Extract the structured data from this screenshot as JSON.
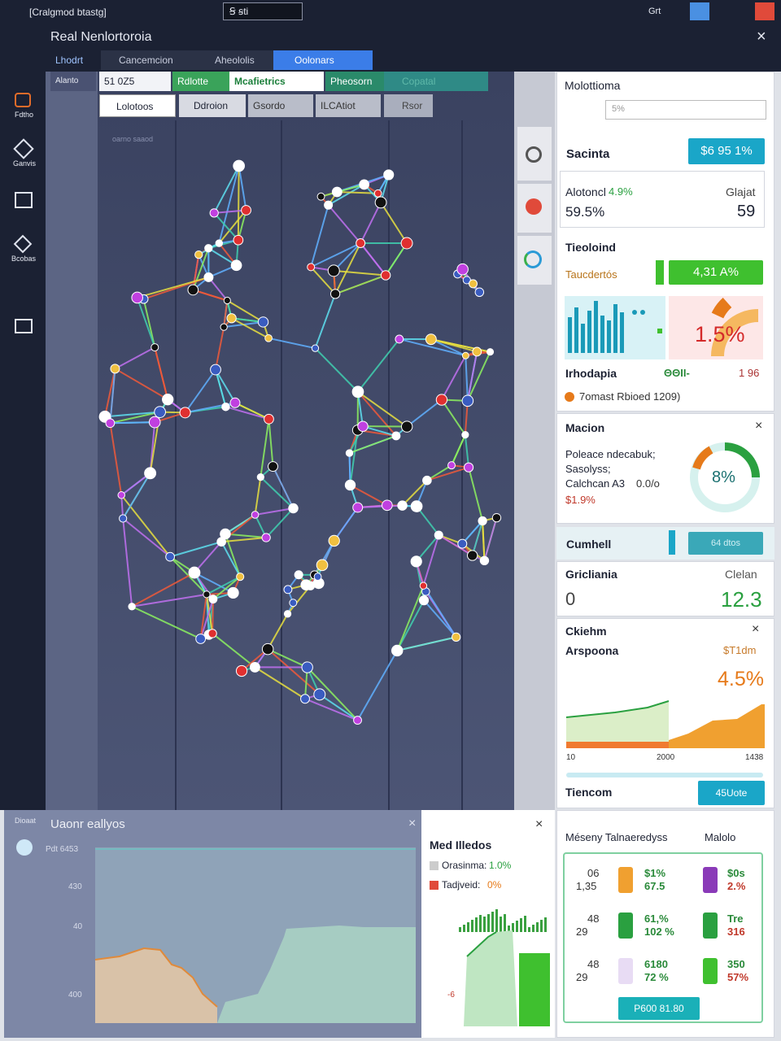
{
  "topbar": {
    "app": "[Cralgmod btastg]",
    "select": "Ꞩ ꞩti",
    "button": "Grt"
  },
  "title": "Real Nenlortoroia",
  "tabs": [
    "Lhodrt",
    "Cancemcion",
    "Aheololis",
    "Oolonars"
  ],
  "sidebar": [
    "Fdtho",
    "Ganvis",
    "Bcobas"
  ],
  "toolbar": {
    "row1": [
      "Alanto",
      "51 0Z5",
      "Rdlotte",
      "Mcafietrics",
      "Pheosorn",
      "Copatal"
    ],
    "row2": [
      "Lolotoos",
      "Ddroion",
      "Gsordo",
      "ILCAtiot",
      "Rsor"
    ]
  },
  "canvas_label": "oarno saaod",
  "right": {
    "header": "Molottioma",
    "filter": "5%",
    "card1": {
      "title": "Sacinta",
      "badge": "$6 95 1%"
    },
    "card2": {
      "label": "Alotoncl",
      "delta": "4.9%",
      "right_label": "Glajat",
      "value": "59.5%",
      "right_value": "59"
    },
    "card3": {
      "title": "Tieoloind",
      "label": "Taucdertós",
      "badge": "4,31 A%",
      "gauge": "1.5%",
      "footer": "Irhodapia",
      "footer_mid": "ΘΘΙΙ-",
      "footer_right": "1 96",
      "legend": "7omast Rbioed 1209)"
    },
    "card4": {
      "title": "Macion",
      "lines": [
        "Poleace ndecabuk;",
        "Sasolyss;",
        "Calchcan A3"
      ],
      "line3_value": "0.0/o",
      "value": "$1.9%",
      "donut": "8%"
    },
    "card5": {
      "title": "Cumhell",
      "badge": "64 dtos"
    },
    "card6": {
      "title": "Gricliania",
      "right_label": "Clelan",
      "left_value": "0",
      "value": "12.3"
    },
    "card7": {
      "title": "Ckiehm",
      "label": "Arspoona",
      "right_label": "$T1dm",
      "value": "4.5%",
      "axis": [
        "10",
        "2000",
        "1438"
      ]
    },
    "card8": {
      "title": "Tiencom",
      "badge": "45Uote"
    }
  },
  "bottom_left": {
    "tag": "Dioaat",
    "title": "Uaonr eallyos",
    "sub": "Pdt 6453",
    "axis": [
      "430",
      "40",
      "400"
    ]
  },
  "bottom_mid": {
    "title": "Med Illedos",
    "rows": [
      [
        "Orasinma:",
        "1.0%"
      ],
      [
        "Tadjveid:",
        "0%"
      ]
    ],
    "axis": "-6"
  },
  "bottom_right": {
    "title": "Méseny Talnaeredyss",
    "right_title": "Malolo",
    "rows": [
      [
        "06",
        "1,35",
        "$1%",
        "67.5",
        "$0s",
        "2.%"
      ],
      [
        "48",
        "29",
        "61,%",
        "102 %",
        "Tre",
        "316"
      ],
      [
        "48",
        "29",
        "6180",
        "72 %",
        "350",
        "57%"
      ]
    ],
    "button": "P600 81.80"
  }
}
